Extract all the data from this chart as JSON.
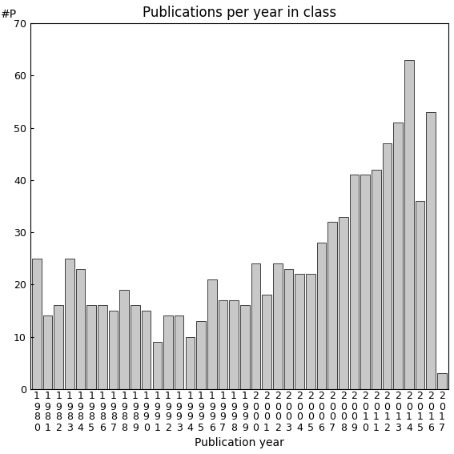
{
  "title": "Publications per year in class",
  "xlabel": "Publication year",
  "ylabel": "#P",
  "start_year": 1980,
  "end_year": 2017,
  "values": [
    25,
    14,
    16,
    25,
    23,
    16,
    16,
    15,
    19,
    16,
    15,
    9,
    14,
    14,
    10,
    13,
    21,
    17,
    17,
    16,
    24,
    18,
    24,
    23,
    22,
    22,
    28,
    32,
    33,
    41,
    41,
    42,
    47,
    51,
    63,
    36,
    53,
    3
  ],
  "bar_color": "#c8c8c8",
  "bar_edge_color": "#000000",
  "ylim": [
    0,
    70
  ],
  "yticks": [
    0,
    10,
    20,
    30,
    40,
    50,
    60,
    70
  ],
  "background_color": "#ffffff",
  "title_fontsize": 12,
  "label_fontsize": 10,
  "tick_fontsize": 9
}
